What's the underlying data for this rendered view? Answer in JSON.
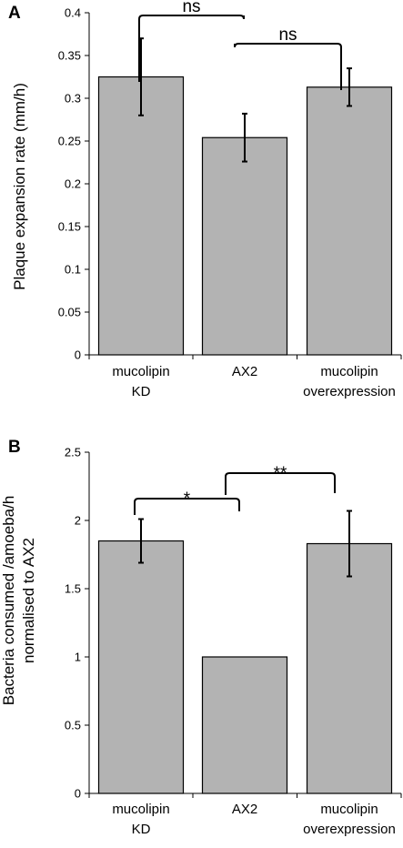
{
  "chart_data": [
    {
      "panel_label": "A",
      "type": "bar",
      "categories": [
        [
          "mucolipin",
          "KD"
        ],
        [
          "AX2"
        ],
        [
          "mucolipin",
          "overexpression"
        ]
      ],
      "values": [
        0.325,
        0.254,
        0.313
      ],
      "errors": [
        0.045,
        0.028,
        0.022
      ],
      "ylabel": "Plaque expansion rate (mm/h)",
      "ylim": [
        0,
        0.4
      ],
      "yticks": [
        "0",
        "0.05",
        "0.1",
        "0.15",
        "0.2",
        "0.25",
        "0.3",
        "0.35",
        "0.4"
      ],
      "bar_color": "#b3b3b3",
      "significance": [
        {
          "from": 0,
          "to": 1,
          "label": "ns"
        },
        {
          "from": 1,
          "to": 2,
          "label": "ns"
        }
      ]
    },
    {
      "panel_label": "B",
      "type": "bar",
      "categories": [
        [
          "mucolipin",
          "KD"
        ],
        [
          "AX2"
        ],
        [
          "mucolipin",
          "overexpression"
        ]
      ],
      "values": [
        1.85,
        1.0,
        1.83
      ],
      "errors": [
        0.16,
        0,
        0.24
      ],
      "ylabel": [
        "Bacteria consumed /amoeba/h",
        "normalised to AX2"
      ],
      "ylim": [
        0,
        2.5
      ],
      "yticks": [
        "0",
        "0.5",
        "1",
        "1.5",
        "2",
        "2.5"
      ],
      "bar_color": "#b3b3b3",
      "significance": [
        {
          "from": 0,
          "to": 1,
          "label": "*"
        },
        {
          "from": 1,
          "to": 2,
          "label": "**"
        }
      ]
    }
  ]
}
